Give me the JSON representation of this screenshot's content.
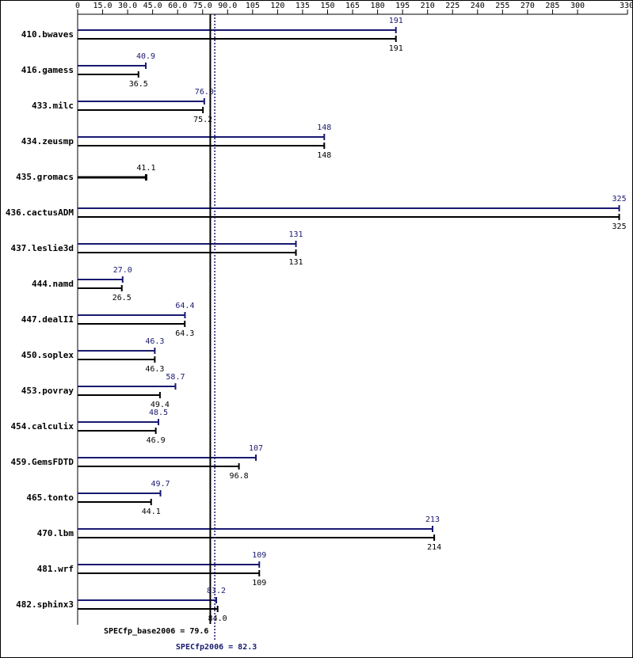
{
  "chart_data": {
    "type": "bar",
    "orientation": "horizontal",
    "categories": [
      "410.bwaves",
      "416.gamess",
      "433.milc",
      "434.zeusmp",
      "435.gromacs",
      "436.cactusADM",
      "437.leslie3d",
      "444.namd",
      "447.dealII",
      "450.soplex",
      "453.povray",
      "454.calculix",
      "459.GemsFDTD",
      "465.tonto",
      "470.lbm",
      "481.wrf",
      "482.sphinx3"
    ],
    "series": [
      {
        "color": "#191970",
        "values": [
          191,
          40.9,
          76.0,
          148,
          null,
          325,
          131,
          27.0,
          64.4,
          46.3,
          58.7,
          48.5,
          107,
          49.7,
          213,
          109,
          83.2
        ],
        "value_labels": [
          "191",
          "40.9",
          "76.0",
          "148",
          null,
          "325",
          "131",
          "27.0",
          "64.4",
          "46.3",
          "58.7",
          "48.5",
          "107",
          "49.7",
          "213",
          "109",
          "83.2"
        ]
      },
      {
        "color": "#000000",
        "values": [
          191,
          36.5,
          75.2,
          148,
          41.1,
          325,
          131,
          26.5,
          64.3,
          46.3,
          49.4,
          46.9,
          96.8,
          44.1,
          214,
          109,
          84.0
        ],
        "value_labels": [
          "191",
          "36.5",
          "75.2",
          "148",
          "41.1",
          "325",
          "131",
          "26.5",
          "64.3",
          "46.3",
          "49.4",
          "46.9",
          "96.8",
          "44.1",
          "214",
          "109",
          "84.0"
        ]
      }
    ],
    "reference_lines": [
      {
        "label": "SPECfp_base2006 = 79.6",
        "value": 79.6,
        "color": "#000000",
        "dashed": false
      },
      {
        "label": "SPECfp2006 = 82.3",
        "value": 82.3,
        "color": "#191970",
        "dashed": true
      }
    ],
    "xlim": [
      0,
      330
    ],
    "xticks": [
      0,
      {
        "value": 15,
        "label": "15.0"
      },
      {
        "value": 30,
        "label": "30.0"
      },
      {
        "value": 45,
        "label": "45.0"
      },
      {
        "value": 60,
        "label": "60.0"
      },
      {
        "value": 75,
        "label": "75.0"
      },
      {
        "value": 90,
        "label": "90.0"
      },
      105,
      120,
      135,
      150,
      165,
      180,
      195,
      210,
      225,
      240,
      255,
      270,
      285,
      300,
      330
    ]
  }
}
